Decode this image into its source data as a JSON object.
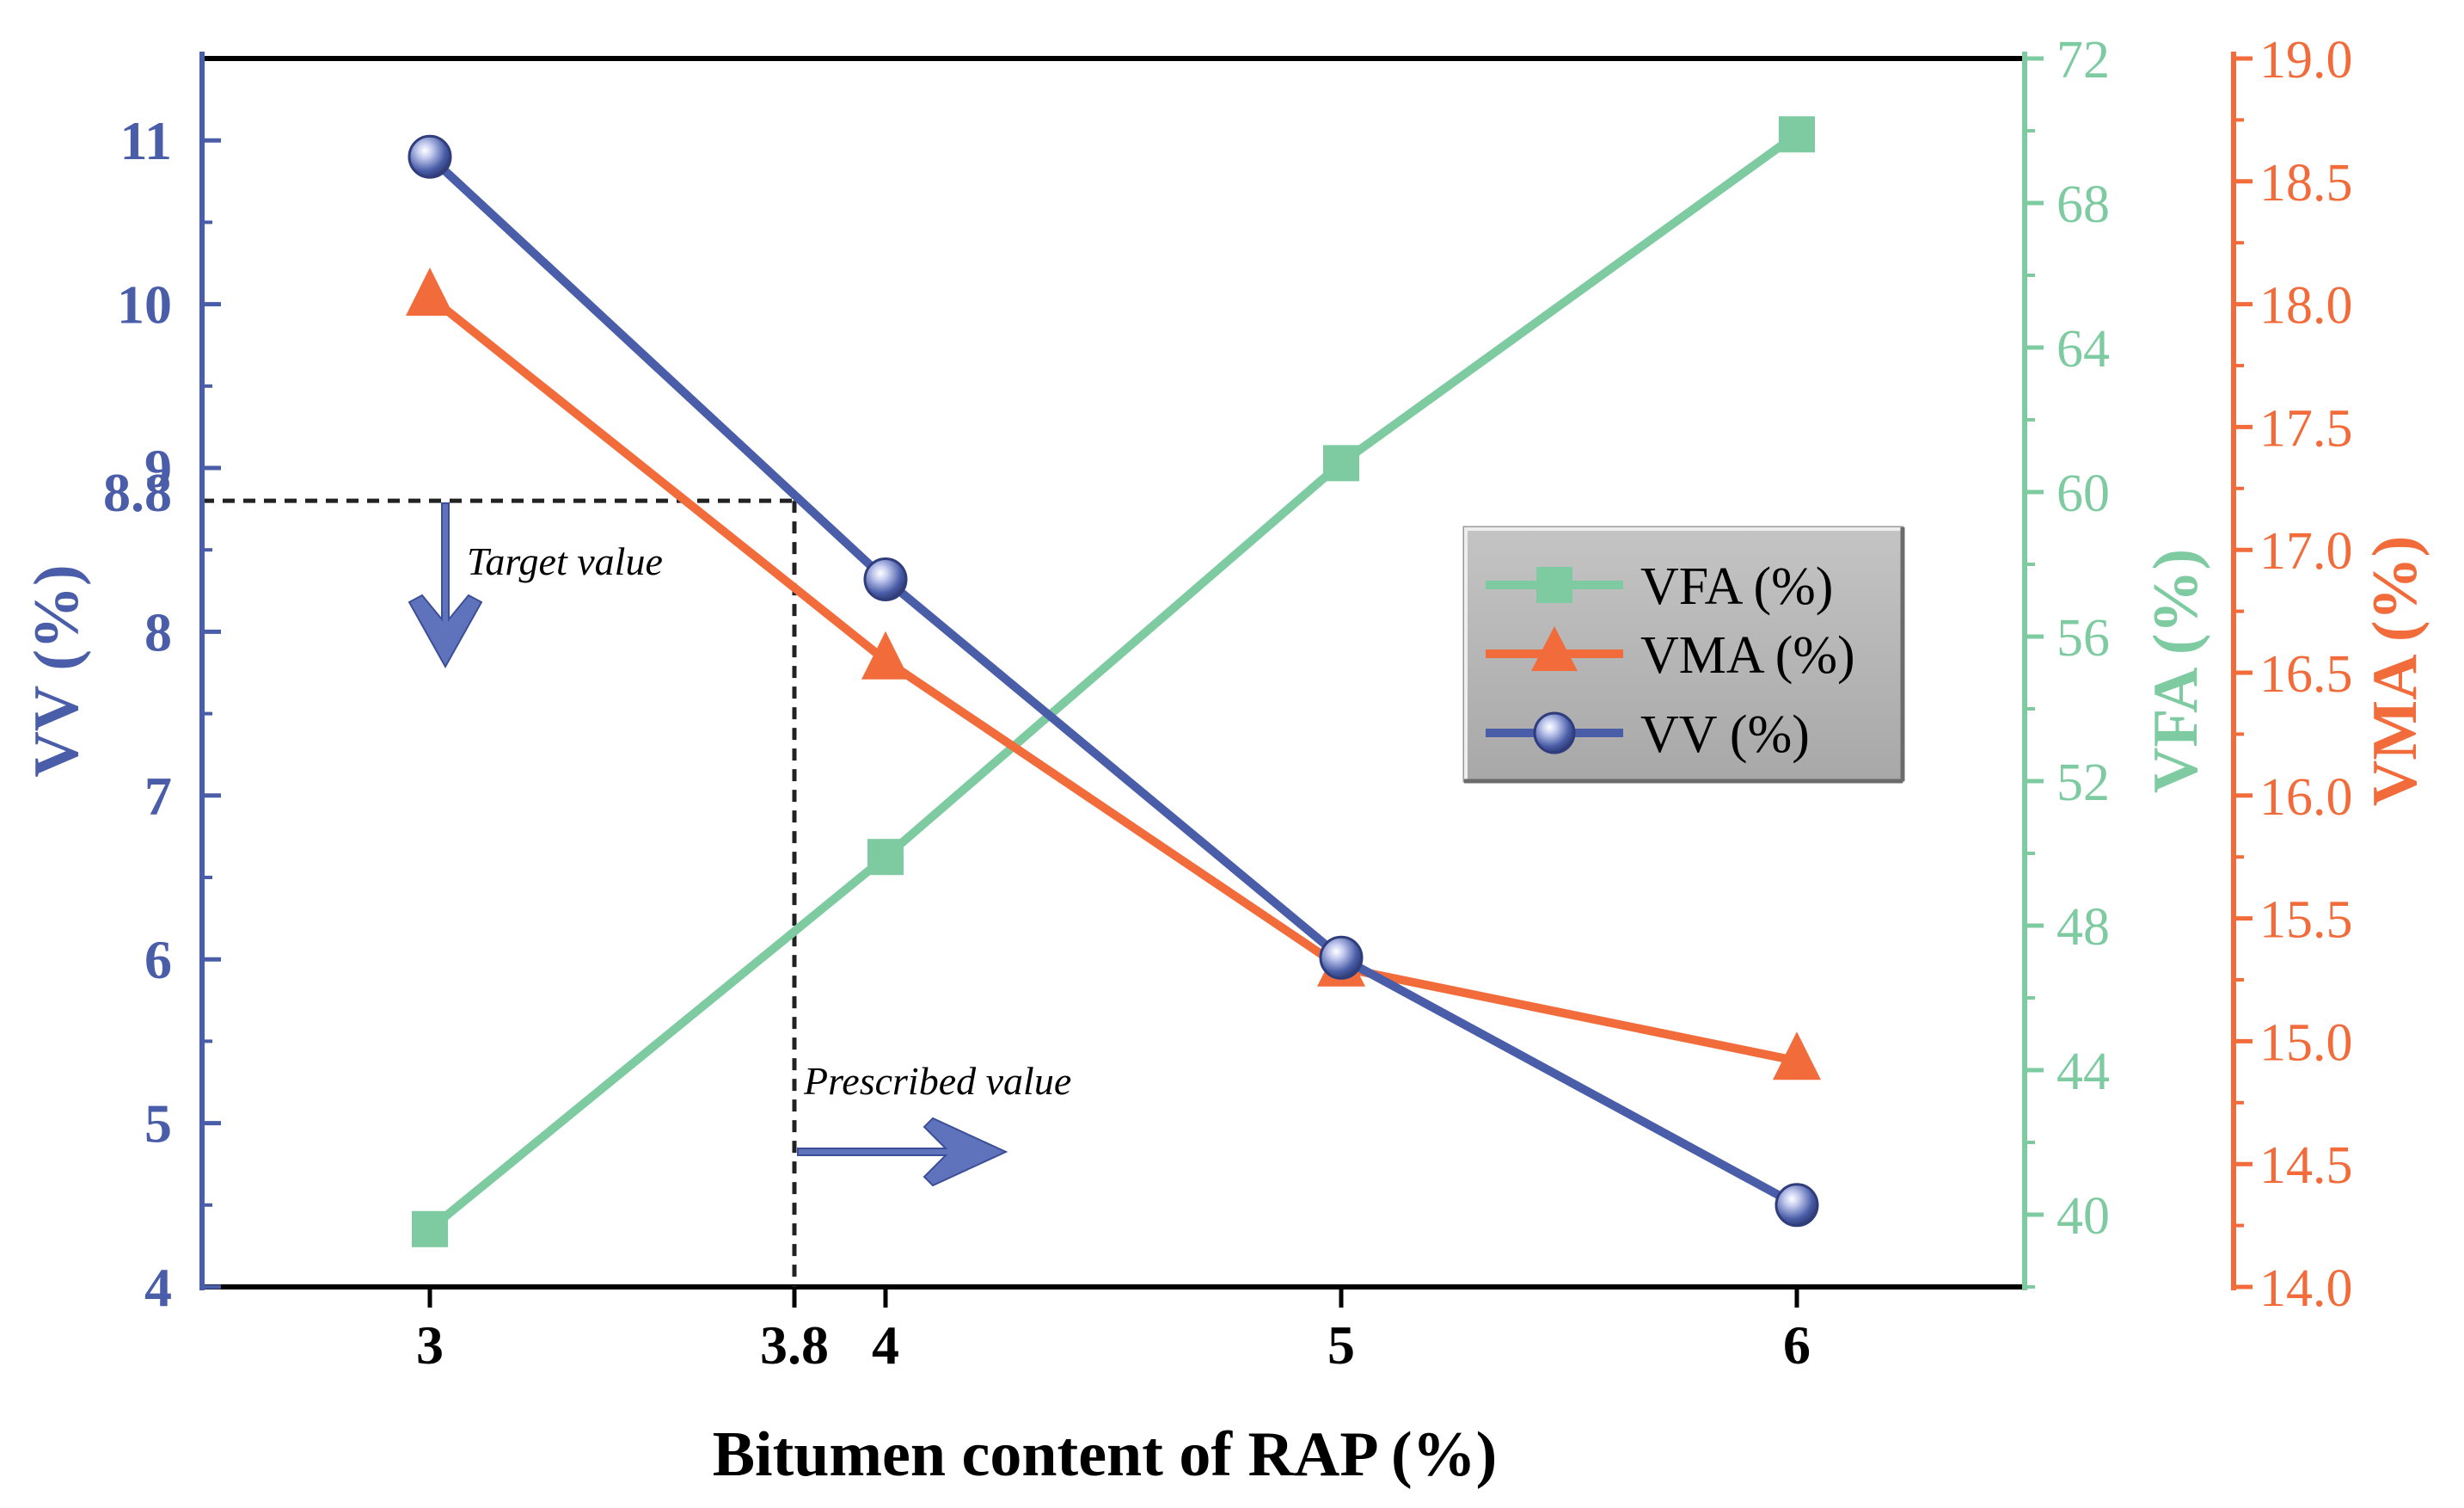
{
  "chart_data": {
    "type": "line",
    "xlabel": "Bitumen content of RAP (%)",
    "xlim": [
      2.5,
      6.5
    ],
    "x": [
      3,
      4,
      5,
      6
    ],
    "x_ticks": [
      {
        "value": 3,
        "label": "3"
      },
      {
        "value": 3.8,
        "label": "3.8"
      },
      {
        "value": 4,
        "label": "4"
      },
      {
        "value": 5,
        "label": "5"
      },
      {
        "value": 6,
        "label": "6"
      }
    ],
    "axes": {
      "vv": {
        "label": "VV (%)",
        "side": "left",
        "color": "#4a5da8",
        "lim": [
          4,
          11.5
        ],
        "ticks": [
          "4",
          "5",
          "6",
          "7",
          "8",
          "8.8",
          "9",
          "10",
          "11"
        ],
        "tick_values": [
          4,
          5,
          6,
          7,
          8,
          8.8,
          9,
          10,
          11
        ]
      },
      "vfa": {
        "label": "VFA (%)",
        "side": "right-inner",
        "color": "#7ecba1",
        "lim": [
          38,
          72
        ],
        "ticks": [
          "40",
          "44",
          "48",
          "52",
          "56",
          "60",
          "64",
          "68",
          "72"
        ],
        "tick_values": [
          40,
          44,
          48,
          52,
          56,
          60,
          64,
          68,
          72
        ]
      },
      "vma": {
        "label": "VMA (%)",
        "side": "right-outer",
        "color": "#f26b3a",
        "lim": [
          14.0,
          19.0
        ],
        "ticks": [
          "14.0",
          "14.5",
          "15.0",
          "15.5",
          "16.0",
          "16.5",
          "17.0",
          "17.5",
          "18.0",
          "18.5",
          "19.0"
        ],
        "tick_values": [
          14.0,
          14.5,
          15.0,
          15.5,
          16.0,
          16.5,
          17.0,
          17.5,
          18.0,
          18.5,
          19.0
        ]
      }
    },
    "series": [
      {
        "name": "VFA (%)",
        "axis": "vfa",
        "marker": "square",
        "color": "#7ecba1",
        "values": [
          39.6,
          49.9,
          60.8,
          69.9
        ]
      },
      {
        "name": "VMA (%)",
        "axis": "vma",
        "marker": "triangle",
        "color": "#f26b3a",
        "values": [
          18.03,
          16.55,
          15.3,
          14.92
        ]
      },
      {
        "name": "VV (%)",
        "axis": "vv",
        "marker": "circle",
        "color": "#4a5da8",
        "values": [
          10.9,
          8.32,
          6.01,
          4.5
        ]
      }
    ],
    "annotations": {
      "target_label": "Target value",
      "prescribed_label": "Prescribed value",
      "target_vv": 8.8,
      "prescribed_x": 3.8
    },
    "legend": {
      "position": "center-right",
      "entries": [
        "VFA (%)",
        "VMA (%)",
        "VV (%)"
      ]
    }
  }
}
